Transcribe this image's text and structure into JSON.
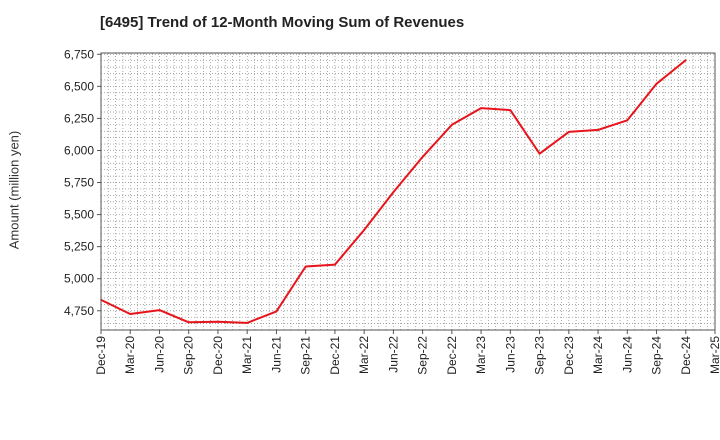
{
  "chart_data": {
    "type": "line",
    "title": "[6495]  Trend of 12-Month Moving Sum of Revenues",
    "ylabel": "Amount (million yen)",
    "xlabel": "",
    "ylim": [
      4600,
      6760
    ],
    "yticks": [
      4750,
      5000,
      5250,
      5500,
      5750,
      6000,
      6250,
      6500,
      6750
    ],
    "ytick_labels": [
      "4,750",
      "5,000",
      "5,250",
      "5,500",
      "5,750",
      "6,000",
      "6,250",
      "6,500",
      "6,750"
    ],
    "categories": [
      "Dec-19",
      "Mar-20",
      "Jun-20",
      "Sep-20",
      "Dec-20",
      "Mar-21",
      "Jun-21",
      "Sep-21",
      "Dec-21",
      "Mar-22",
      "Jun-22",
      "Sep-22",
      "Dec-22",
      "Mar-23",
      "Jun-23",
      "Sep-23",
      "Dec-23",
      "Mar-24",
      "Jun-24",
      "Sep-24",
      "Dec-24",
      "Mar-25"
    ],
    "series": [
      {
        "values": [
          4835,
          4725,
          4755,
          4660,
          4665,
          4655,
          4745,
          5095,
          5110,
          5380,
          5675,
          5950,
          6200,
          6330,
          6315,
          5975,
          6145,
          6160,
          6235,
          6520,
          6705,
          null
        ],
        "color": "#e8141b"
      }
    ],
    "grid": true,
    "grid_style": "dotted",
    "legend": "none"
  }
}
